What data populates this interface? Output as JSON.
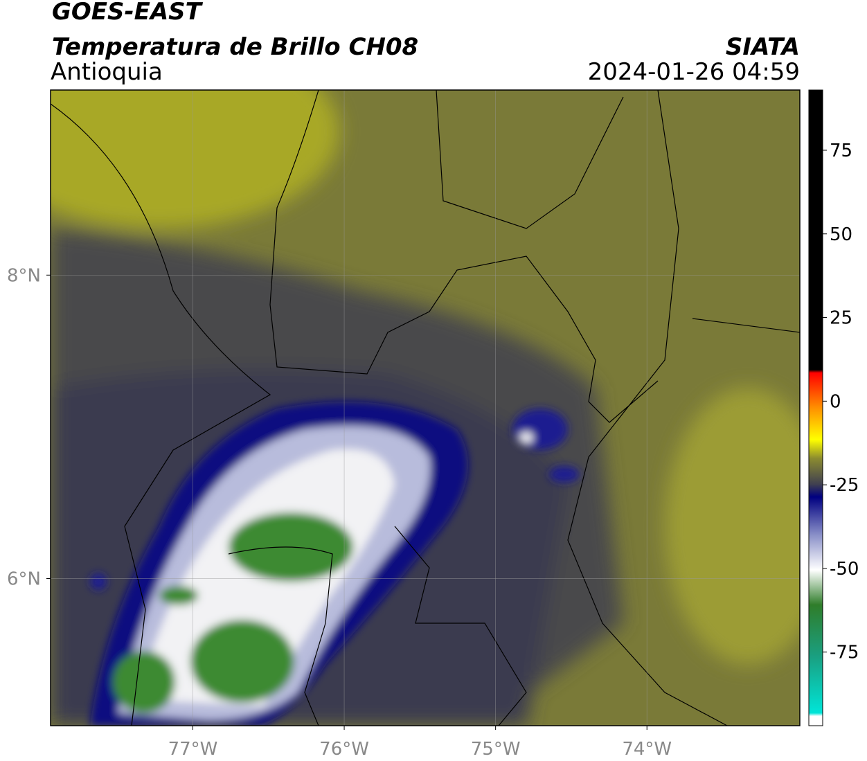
{
  "header": {
    "title": "GOES-EAST",
    "subtitle": "Temperatura de Brillo CH08",
    "region": "Antioquia",
    "source": "SIATA",
    "datetime": "2024-01-26 04:59"
  },
  "map": {
    "xlim": [
      -77.94,
      -72.99
    ],
    "ylim": [
      5.03,
      9.22
    ],
    "xticks": [
      {
        "value": -77,
        "label": "77°W"
      },
      {
        "value": -76,
        "label": "76°W"
      },
      {
        "value": -75,
        "label": "75°W"
      },
      {
        "value": -74,
        "label": "74°W"
      }
    ],
    "yticks": [
      {
        "value": 6,
        "label": "6°N"
      },
      {
        "value": 8,
        "label": "8°N"
      }
    ],
    "grid": true
  },
  "colorbar": {
    "lim": [
      -97,
      93
    ],
    "ticks": [
      75,
      50,
      25,
      0,
      -25,
      -50,
      -75
    ]
  }
}
